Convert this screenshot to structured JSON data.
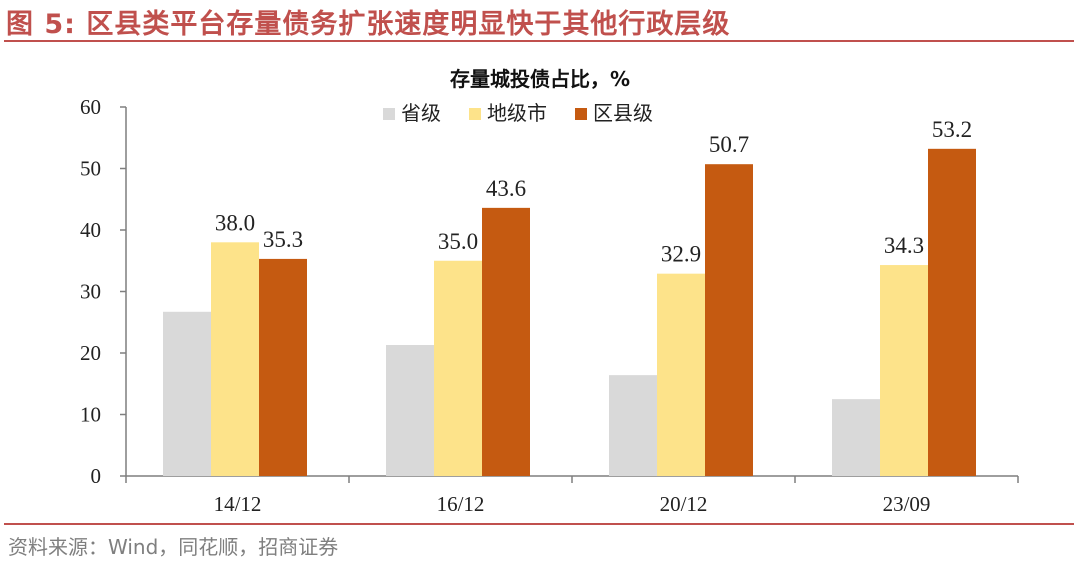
{
  "figure": {
    "title": "图 5:  区县类平台存量债务扩张速度明显快于其他行政层级",
    "source": "资料来源：Wind，同花顺，招商证券"
  },
  "colors": {
    "accent": "#c0504d",
    "axis": "#7f7f7f"
  },
  "chart_data": {
    "type": "bar",
    "title": "存量城投债占比，%",
    "categories": [
      "14/12",
      "16/12",
      "20/12",
      "23/09"
    ],
    "series": [
      {
        "name": "省级",
        "color": "#d9d9d9",
        "values": [
          26.7,
          21.3,
          16.4,
          12.5
        ],
        "labels": [
          null,
          null,
          null,
          null
        ]
      },
      {
        "name": "地级市",
        "color": "#fde38a",
        "values": [
          38.0,
          35.0,
          32.9,
          34.3
        ],
        "labels": [
          "38.0",
          "35.0",
          "32.9",
          "34.3"
        ]
      },
      {
        "name": "区县级",
        "color": "#c55a11",
        "values": [
          35.3,
          43.6,
          50.7,
          53.2
        ],
        "labels": [
          "35.3",
          "43.6",
          "50.7",
          "53.2"
        ]
      }
    ],
    "ylim": [
      0,
      60
    ],
    "yticks": [
      0,
      10,
      20,
      30,
      40,
      50,
      60
    ],
    "xlabel": "",
    "ylabel": "",
    "grid": false,
    "legend_position": "top-center"
  }
}
